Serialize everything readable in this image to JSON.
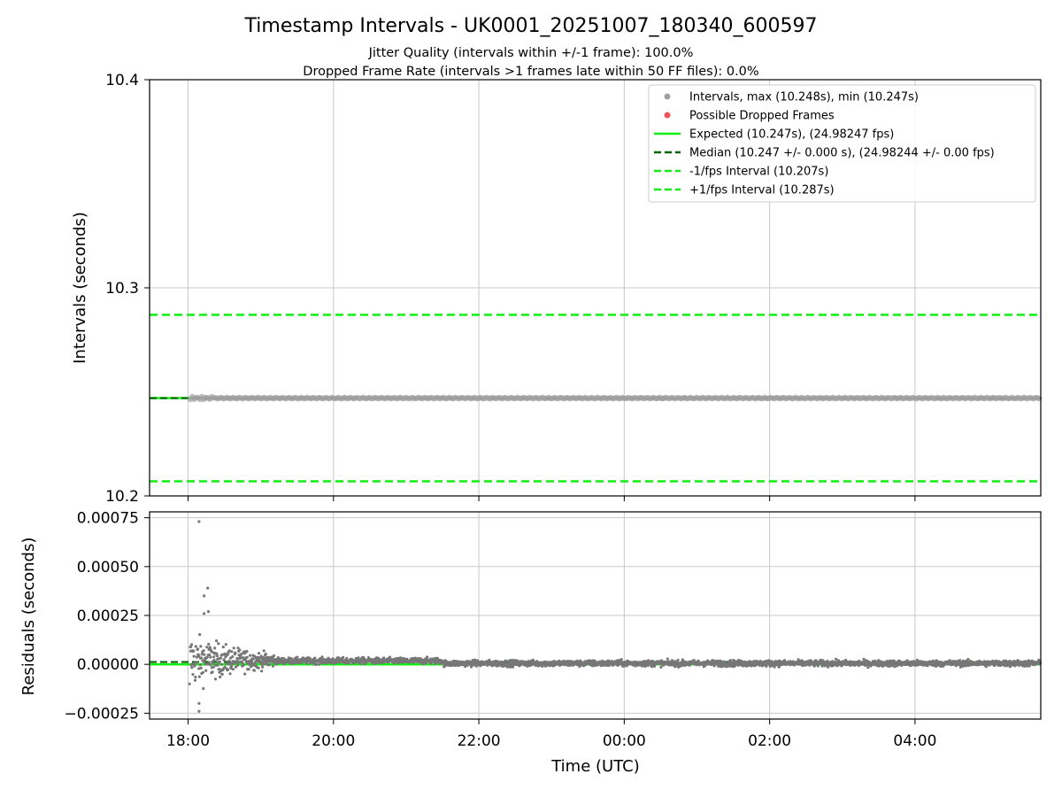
{
  "title": "Timestamp Intervals - UK0001_20251007_180340_600597",
  "subtitle_jitter": "Jitter Quality (intervals within +/-1 frame): 100.0%",
  "subtitle_dropped": "Dropped Frame Rate (intervals >1 frames late within 50 FF files): 0.0%",
  "colors": {
    "interval_points": "#a0a0a0",
    "dropped_points": "#ee5555",
    "expected_line": "#11ee11",
    "median_line": "#006400",
    "fps_interval_line": "#11ee11",
    "residual_points": "#777777",
    "grid": "#c8c8c8"
  },
  "chart_data": [
    {
      "type": "scatter",
      "name": "intervals",
      "xlabel": "",
      "ylabel": "Intervals (seconds)",
      "xlim_hours": [
        17.47,
        29.73
      ],
      "ylim": [
        10.2,
        10.4
      ],
      "yticks": [
        10.2,
        10.3,
        10.4
      ],
      "ytick_labels": [
        "10.2",
        "10.3",
        "10.4"
      ],
      "grid": true,
      "legend_position": "top-right",
      "series": [
        {
          "name": "Intervals, max (10.248s), min (10.247s)",
          "kind": "points",
          "y_min": 10.247,
          "y_max": 10.248
        },
        {
          "name": "Possible Dropped Frames",
          "kind": "points",
          "count": 0
        },
        {
          "name": "Expected (10.247s), (24.98247 fps)",
          "kind": "line",
          "y": 10.247
        },
        {
          "name": "Median (10.247 +/- 0.000 s), (24.98244 +/- 0.00 fps)",
          "kind": "dashed-line",
          "y": 10.247
        },
        {
          "name": "-1/fps Interval (10.207s)",
          "kind": "dashed-line",
          "y": 10.207
        },
        {
          "name": "+1/fps Interval (10.287s)",
          "kind": "dashed-line",
          "y": 10.287
        }
      ]
    },
    {
      "type": "scatter",
      "name": "residuals",
      "xlabel": "Time (UTC)",
      "ylabel": "Residuals (seconds)",
      "xlim_hours": [
        17.47,
        29.73
      ],
      "ylim": [
        -0.00028,
        0.00078
      ],
      "yticks": [
        -0.00025,
        0,
        0.00025,
        0.0005,
        0.00075
      ],
      "ytick_labels": [
        "−0.00025",
        "0.00000",
        "0.00025",
        "0.00050",
        "0.00075"
      ],
      "xticks_hours": [
        18,
        20,
        22,
        24,
        26,
        28
      ],
      "xtick_labels": [
        "18:00",
        "20:00",
        "22:00",
        "00:00",
        "02:00",
        "04:00"
      ],
      "grid": true,
      "zero_line": 0,
      "median_line": 1.2e-05,
      "outliers": [
        {
          "x": 18.15,
          "y": 0.00073
        },
        {
          "x": 18.27,
          "y": 0.00039
        },
        {
          "x": 18.22,
          "y": 0.00035
        },
        {
          "x": 18.28,
          "y": 0.00027
        },
        {
          "x": 18.22,
          "y": 0.00026
        },
        {
          "x": 18.15,
          "y": -0.0002
        },
        {
          "x": 18.15,
          "y": -0.00024
        },
        {
          "x": 18.02,
          "y": -0.0001
        }
      ]
    }
  ]
}
